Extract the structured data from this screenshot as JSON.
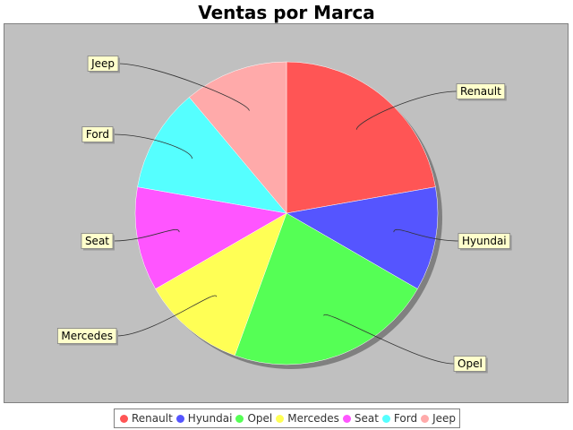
{
  "chart_data": {
    "type": "pie",
    "title": "Ventas por Marca",
    "categories": [
      "Renault",
      "Hyundai",
      "Opel",
      "Mercedes",
      "Seat",
      "Ford",
      "Jeep"
    ],
    "values": [
      20,
      10,
      20,
      10,
      10,
      10,
      10
    ],
    "colors": [
      "#ff5555",
      "#5555ff",
      "#55ff55",
      "#ffff55",
      "#ff55ff",
      "#55ffff",
      "#ffaaaa"
    ],
    "legend_placement": "bottom",
    "start_angle_deg": 90,
    "direction": "clockwise"
  }
}
